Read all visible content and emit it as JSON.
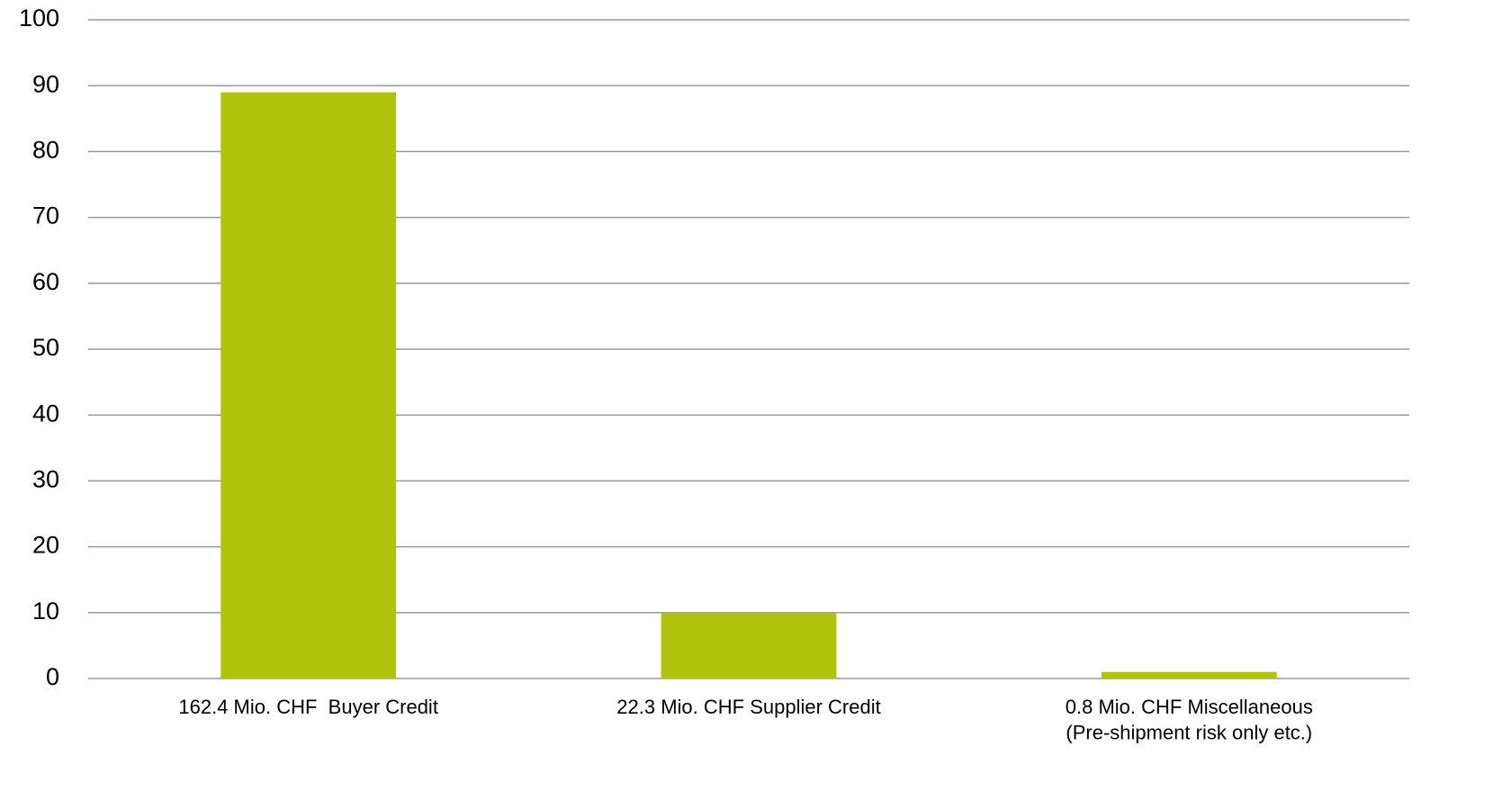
{
  "chart_data": {
    "type": "bar",
    "categories": [
      "162.4 Mio. CHF  Buyer Credit",
      "22.3 Mio. CHF Supplier Credit",
      "0.8 Mio. CHF Miscellaneous\n(Pre-shipment risk only etc.)"
    ],
    "values": [
      89,
      10,
      1
    ],
    "color": "#afc40a",
    "ylim": [
      0,
      100
    ],
    "yticks": [
      0,
      10,
      20,
      30,
      40,
      50,
      60,
      70,
      80,
      90,
      100
    ],
    "grid": true
  }
}
